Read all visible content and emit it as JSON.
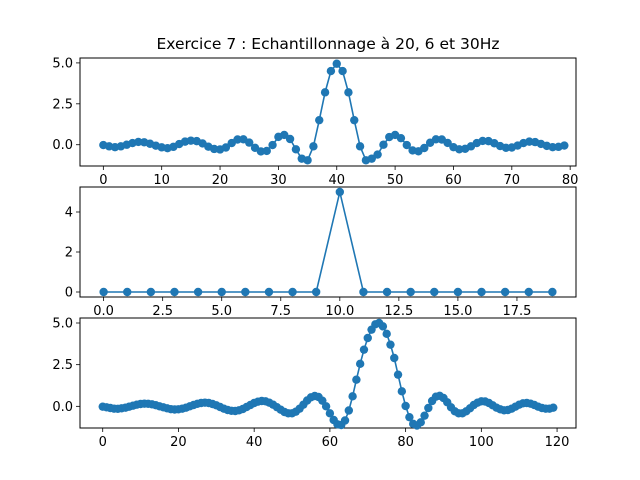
{
  "title": "Exercice 7 : Echantillonnage à 20, 6 et 30Hz",
  "colors": {
    "series": "#1f77b4"
  },
  "chart_data": [
    {
      "type": "line",
      "title": "Exercice 7 : Echantillonnage à 20, 6 et 30Hz",
      "xlim": [
        -4,
        81
      ],
      "ylim": [
        -1.3,
        5.3
      ],
      "xticks": [
        0,
        10,
        20,
        30,
        40,
        50,
        60,
        70,
        80
      ],
      "xtick_labels": [
        "0",
        "10",
        "20",
        "30",
        "40",
        "50",
        "60",
        "70",
        "80"
      ],
      "yticks": [
        0.0,
        2.5,
        5.0
      ],
      "ytick_labels": [
        "0.0",
        "2.5",
        "5.0"
      ],
      "grid": false,
      "x_start": 0,
      "values": [
        -0.02,
        -0.1,
        -0.15,
        -0.1,
        0.0,
        0.1,
        0.17,
        0.15,
        0.06,
        -0.06,
        -0.16,
        -0.21,
        -0.13,
        0.04,
        0.19,
        0.25,
        0.22,
        0.08,
        -0.12,
        -0.26,
        -0.29,
        -0.17,
        0.1,
        0.32,
        0.33,
        0.13,
        -0.19,
        -0.41,
        -0.38,
        -0.02,
        0.48,
        0.6,
        0.35,
        -0.28,
        -0.85,
        -0.95,
        -0.1,
        1.5,
        3.2,
        4.5,
        4.95,
        4.5,
        3.2,
        1.5,
        -0.1,
        -0.95,
        -0.85,
        -0.6,
        0.0,
        0.47,
        0.6,
        0.4,
        -0.02,
        -0.35,
        -0.4,
        -0.2,
        0.12,
        0.33,
        0.32,
        0.11,
        -0.15,
        -0.28,
        -0.25,
        -0.1,
        0.1,
        0.23,
        0.22,
        0.09,
        -0.08,
        -0.19,
        -0.17,
        -0.05,
        0.1,
        0.19,
        0.16,
        0.05,
        -0.07,
        -0.15,
        -0.13,
        -0.05
      ]
    },
    {
      "type": "line",
      "xlim": [
        -1,
        20
      ],
      "ylim": [
        -0.25,
        5.25
      ],
      "xticks": [
        0,
        2.5,
        5,
        7.5,
        10,
        12.5,
        15,
        17.5
      ],
      "xtick_labels": [
        "0.0",
        "2.5",
        "5.0",
        "7.5",
        "10.0",
        "12.5",
        "15.0",
        "17.5"
      ],
      "yticks": [
        0,
        2,
        4
      ],
      "ytick_labels": [
        "0",
        "2",
        "4"
      ],
      "grid": false,
      "x_start": 0,
      "values": [
        0,
        0,
        0,
        0,
        0,
        0,
        0,
        0,
        0,
        0,
        5,
        0,
        0,
        0,
        0,
        0,
        0,
        0,
        0,
        0
      ]
    },
    {
      "type": "line",
      "xlim": [
        -6,
        125
      ],
      "ylim": [
        -1.3,
        5.3
      ],
      "xticks": [
        0,
        20,
        40,
        60,
        80,
        100,
        120
      ],
      "xtick_labels": [
        "0",
        "20",
        "40",
        "60",
        "80",
        "100",
        "120"
      ],
      "yticks": [
        0.0,
        2.5,
        5.0
      ],
      "ytick_labels": [
        "0.0",
        "2.5",
        "5.0"
      ],
      "grid": false,
      "x_start": 0,
      "values": [
        -0.02,
        -0.06,
        -0.1,
        -0.14,
        -0.15,
        -0.12,
        -0.08,
        -0.02,
        0.04,
        0.1,
        0.14,
        0.16,
        0.15,
        0.12,
        0.07,
        0.0,
        -0.06,
        -0.12,
        -0.17,
        -0.19,
        -0.18,
        -0.14,
        -0.08,
        0.0,
        0.08,
        0.15,
        0.2,
        0.22,
        0.2,
        0.14,
        0.06,
        -0.04,
        -0.14,
        -0.22,
        -0.27,
        -0.28,
        -0.24,
        -0.16,
        -0.04,
        0.08,
        0.2,
        0.28,
        0.32,
        0.3,
        0.22,
        0.1,
        -0.05,
        -0.2,
        -0.34,
        -0.42,
        -0.42,
        -0.32,
        -0.14,
        0.1,
        0.35,
        0.54,
        0.62,
        0.56,
        0.34,
        0.0,
        -0.42,
        -0.82,
        -1.08,
        -1.12,
        -0.85,
        -0.25,
        0.6,
        1.6,
        2.55,
        3.4,
        4.1,
        4.6,
        4.92,
        5.0,
        4.8,
        4.35,
        3.7,
        2.9,
        1.9,
        0.9,
        0.02,
        -0.65,
        -1.05,
        -1.15,
        -0.96,
        -0.56,
        -0.1,
        0.32,
        0.58,
        0.63,
        0.5,
        0.24,
        -0.06,
        -0.3,
        -0.42,
        -0.42,
        -0.3,
        -0.12,
        0.08,
        0.22,
        0.3,
        0.29,
        0.2,
        0.06,
        -0.08,
        -0.18,
        -0.24,
        -0.22,
        -0.14,
        -0.02,
        0.1,
        0.18,
        0.2,
        0.16,
        0.08,
        -0.02,
        -0.1,
        -0.14,
        -0.14,
        -0.08
      ]
    }
  ]
}
